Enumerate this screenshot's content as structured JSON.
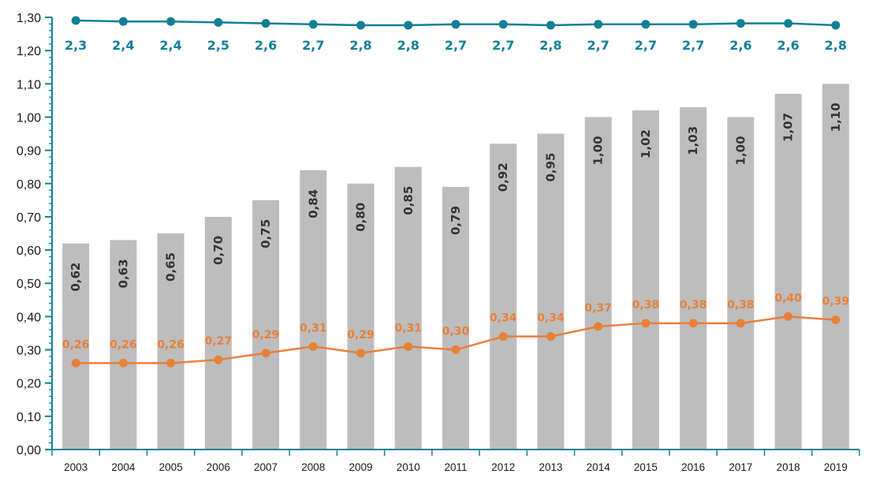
{
  "chart_data": {
    "type": "bar",
    "categories": [
      "2003",
      "2004",
      "2005",
      "2006",
      "2007",
      "2008",
      "2009",
      "2010",
      "2011",
      "2012",
      "2013",
      "2014",
      "2015",
      "2016",
      "2017",
      "2018",
      "2019"
    ],
    "ylim": [
      0,
      1.3
    ],
    "y_ticks": [
      "0,00",
      "0,10",
      "0,20",
      "0,30",
      "0,40",
      "0,50",
      "0,60",
      "0,70",
      "0,80",
      "0,90",
      "1,00",
      "1,10",
      "1,20",
      "1,30"
    ],
    "grid": false,
    "series": [
      {
        "kind": "bar",
        "color": "#bdbdbd",
        "values": [
          0.62,
          0.63,
          0.65,
          0.7,
          0.75,
          0.84,
          0.8,
          0.85,
          0.79,
          0.92,
          0.95,
          1.0,
          1.02,
          1.03,
          1.0,
          1.07,
          1.1
        ],
        "labels": [
          "0,62",
          "0,63",
          "0,65",
          "0,70",
          "0,75",
          "0,84",
          "0,80",
          "0,85",
          "0,79",
          "0,92",
          "0,95",
          "1,00",
          "1,02",
          "1,03",
          "1,00",
          "1,07",
          "1,10"
        ]
      },
      {
        "kind": "line",
        "color": "#e8803a",
        "values": [
          0.26,
          0.26,
          0.26,
          0.27,
          0.29,
          0.31,
          0.29,
          0.31,
          0.3,
          0.34,
          0.34,
          0.37,
          0.38,
          0.38,
          0.38,
          0.4,
          0.39
        ],
        "labels": [
          "0,26",
          "0,26",
          "0,26",
          "0,27",
          "0,29",
          "0,31",
          "0,29",
          "0,31",
          "0,30",
          "0,34",
          "0,34",
          "0,37",
          "0,38",
          "0,38",
          "0,38",
          "0,40",
          "0,39"
        ]
      },
      {
        "kind": "line",
        "color": "#127f97",
        "values": [
          2.3,
          2.4,
          2.4,
          2.5,
          2.6,
          2.7,
          2.8,
          2.8,
          2.7,
          2.7,
          2.8,
          2.7,
          2.7,
          2.7,
          2.6,
          2.6,
          2.8
        ],
        "labels": [
          "2,3",
          "2,4",
          "2,4",
          "2,5",
          "2,6",
          "2,7",
          "2,8",
          "2,8",
          "2,7",
          "2,7",
          "2,8",
          "2,7",
          "2,7",
          "2,7",
          "2,6",
          "2,6",
          "2,8"
        ]
      }
    ]
  }
}
